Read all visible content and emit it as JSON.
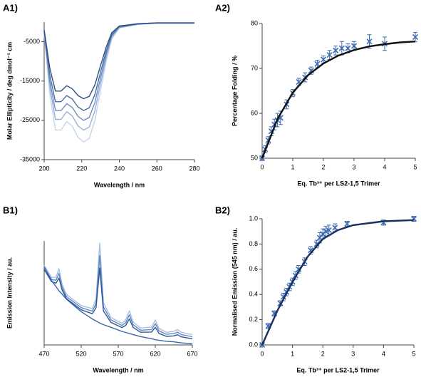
{
  "chart_data": [
    {
      "type": "line",
      "label": "A1)",
      "xlabel": "Wavelength / nm",
      "ylabel": "Molar Ellipticity / deg dmol⁻¹ cm",
      "xlim": [
        200,
        280
      ],
      "xticks": [
        200,
        220,
        240,
        260,
        280
      ],
      "ylim": [
        -35000,
        0
      ],
      "yticks": [
        -5000,
        -15000,
        -25000,
        -35000
      ],
      "x": [
        200,
        203,
        206,
        209,
        212,
        215,
        218,
        221,
        224,
        227,
        230,
        233,
        236,
        240,
        250,
        260,
        280
      ],
      "series": [
        {
          "color": "#c6d4ec",
          "values": [
            -3050,
            -18300,
            -27450,
            -27450,
            -25300,
            -26500,
            -29300,
            -30500,
            -29600,
            -25000,
            -17400,
            -10100,
            -4300,
            -1500,
            -600,
            -300,
            -300
          ]
        },
        {
          "color": "#98b1d9",
          "values": [
            -2750,
            -16500,
            -24750,
            -24750,
            -22800,
            -23900,
            -26400,
            -27500,
            -26700,
            -22600,
            -15700,
            -9100,
            -3850,
            -1400,
            -550,
            -300,
            -300
          ]
        },
        {
          "color": "#6e8fc3",
          "values": [
            -2500,
            -15000,
            -22500,
            -22500,
            -20750,
            -21750,
            -24000,
            -25000,
            -24250,
            -20500,
            -14250,
            -8250,
            -3500,
            -1250,
            -500,
            -250,
            -250
          ]
        },
        {
          "color": "#4a6fa5",
          "values": [
            -2250,
            -13500,
            -20250,
            -20250,
            -18700,
            -19600,
            -21600,
            -22500,
            -21800,
            -18450,
            -12800,
            -7400,
            -3150,
            -1100,
            -450,
            -200,
            -200
          ]
        },
        {
          "color": "#2e4f7e",
          "values": [
            -1950,
            -11700,
            -17550,
            -17550,
            -16200,
            -17000,
            -18700,
            -19500,
            -18900,
            -16000,
            -11100,
            -6400,
            -2700,
            -1000,
            -400,
            -200,
            -200
          ]
        }
      ]
    },
    {
      "type": "scatter",
      "label": "A2)",
      "xlabel": "Eq. Tb³⁺ per LS2-1,5 Trimer",
      "ylabel": "Percentage Folding / %",
      "xlim": [
        0,
        5
      ],
      "xticks": [
        0,
        1,
        2,
        3,
        4,
        5
      ],
      "ylim": [
        50,
        80
      ],
      "yticks": [
        50,
        60,
        70,
        80
      ],
      "x": [
        0,
        0.1,
        0.2,
        0.3,
        0.4,
        0.5,
        0.6,
        0.8,
        1.0,
        1.2,
        1.4,
        1.6,
        1.8,
        2.0,
        2.2,
        2.4,
        2.6,
        2.8,
        3.0,
        3.5,
        4.0,
        5.0
      ],
      "series": [
        {
          "style": "points",
          "color": "#3d6cb0",
          "values": [
            50,
            52,
            54,
            56,
            57.5,
            58.5,
            59,
            62,
            64.5,
            67,
            68,
            69.5,
            71,
            72,
            73,
            74,
            74.5,
            74.5,
            75,
            76,
            75.5,
            77
          ],
          "errors": [
            0.5,
            0.8,
            0.8,
            1,
            1.2,
            1.5,
            1.5,
            1,
            0.8,
            0.8,
            1,
            0.8,
            0.8,
            0.8,
            1,
            1,
            1.5,
            1,
            1,
            1.5,
            1.5,
            1
          ]
        },
        {
          "style": "line",
          "color": "#111111",
          "x": [
            0,
            0.5,
            1,
            1.5,
            2,
            2.5,
            3,
            3.5,
            4,
            4.5,
            5
          ],
          "values": [
            50,
            58.7,
            64.6,
            68.5,
            71.1,
            72.9,
            74.1,
            74.9,
            75.4,
            75.8,
            76.0
          ]
        }
      ]
    },
    {
      "type": "line",
      "label": "B1)",
      "xlabel": "Wavelength / nm",
      "ylabel": "Emission Intensity / au.",
      "xlim": [
        470,
        670
      ],
      "xticks": [
        470,
        520,
        570,
        620,
        670
      ],
      "ylim": [
        0,
        100
      ],
      "x": [
        470,
        480,
        486,
        490,
        494,
        500,
        520,
        535,
        540,
        545,
        550,
        560,
        575,
        580,
        585,
        590,
        600,
        615,
        620,
        625,
        635,
        645,
        650,
        655,
        670
      ],
      "series": [
        {
          "color": "#a9bfe2",
          "values": [
            76.5,
            64.8,
            65,
            73.3,
            58.7,
            48.6,
            37.8,
            35,
            43.7,
            97.9,
            40.6,
            26.4,
            20.7,
            24,
            32.9,
            22.2,
            16.2,
            17.2,
            24,
            15.9,
            12.2,
            13.1,
            14.8,
            12.2,
            9.9
          ]
        },
        {
          "color": "#5f86c0",
          "values": [
            74.5,
            62.8,
            62.2,
            68.8,
            55.9,
            46.6,
            35.8,
            32.5,
            39.7,
            85.9,
            36.6,
            24.1,
            18.7,
            21.4,
            28.9,
            19.6,
            14.2,
            14.8,
            20.5,
            13.5,
            10.2,
            10.9,
            12.3,
            10,
            7.9
          ]
        },
        {
          "color": "#2c5693",
          "values": [
            72.5,
            60.8,
            59.4,
            64.3,
            53.1,
            44.6,
            33.8,
            30,
            35.7,
            73.9,
            32.6,
            21.8,
            16.7,
            18.8,
            24.9,
            17,
            12.2,
            12.4,
            17,
            11.1,
            8.2,
            8.7,
            9.8,
            7.8,
            5.9
          ]
        },
        {
          "color": "#3a68a6",
          "values": [
            75,
            62,
            56,
            52,
            49,
            44,
            32,
            25,
            23,
            21,
            19.5,
            17,
            13,
            12,
            11,
            10,
            8,
            6,
            5,
            4.5,
            3.5,
            3,
            2.5,
            2,
            1
          ]
        }
      ]
    },
    {
      "type": "scatter",
      "label": "B2)",
      "xlabel": "Eq. Tb³⁺ per LS2-1,5 Trimer",
      "ylabel": "Normalised Emission (545 nm) / au.",
      "xlim": [
        0,
        5
      ],
      "xticks": [
        0,
        1,
        2,
        3,
        4,
        5
      ],
      "ylim": [
        0,
        1
      ],
      "yticks": [
        {
          "value": 0,
          "label": "0.0"
        },
        0.2,
        0.4,
        0.6,
        0.8,
        {
          "value": 1,
          "label": "1.0"
        }
      ],
      "x": [
        0,
        0.2,
        0.4,
        0.6,
        0.7,
        0.8,
        0.9,
        1.0,
        1.1,
        1.2,
        1.4,
        1.6,
        1.8,
        1.9,
        2.0,
        2.1,
        2.2,
        2.4,
        2.8,
        4.0,
        5.0
      ],
      "series": [
        {
          "style": "points",
          "color": "#3d6cb0",
          "values": [
            0,
            0.15,
            0.25,
            0.33,
            0.38,
            0.42,
            0.46,
            0.5,
            0.55,
            0.6,
            0.66,
            0.75,
            0.8,
            0.85,
            0.88,
            0.9,
            0.91,
            0.93,
            0.96,
            0.97,
            1.0
          ],
          "errors": [
            0.01,
            0.02,
            0.02,
            0.02,
            0.03,
            0.03,
            0.03,
            0.03,
            0.03,
            0.03,
            0.03,
            0.03,
            0.03,
            0.04,
            0.04,
            0.04,
            0.04,
            0.03,
            0.02,
            0.02,
            0.02
          ]
        },
        {
          "style": "line",
          "color": "#1a2f5e",
          "x": [
            0,
            0.5,
            1,
            1.5,
            2,
            2.5,
            3,
            4,
            5
          ],
          "values": [
            0,
            0.27,
            0.5,
            0.7,
            0.84,
            0.91,
            0.95,
            0.98,
            0.99
          ]
        }
      ]
    }
  ]
}
